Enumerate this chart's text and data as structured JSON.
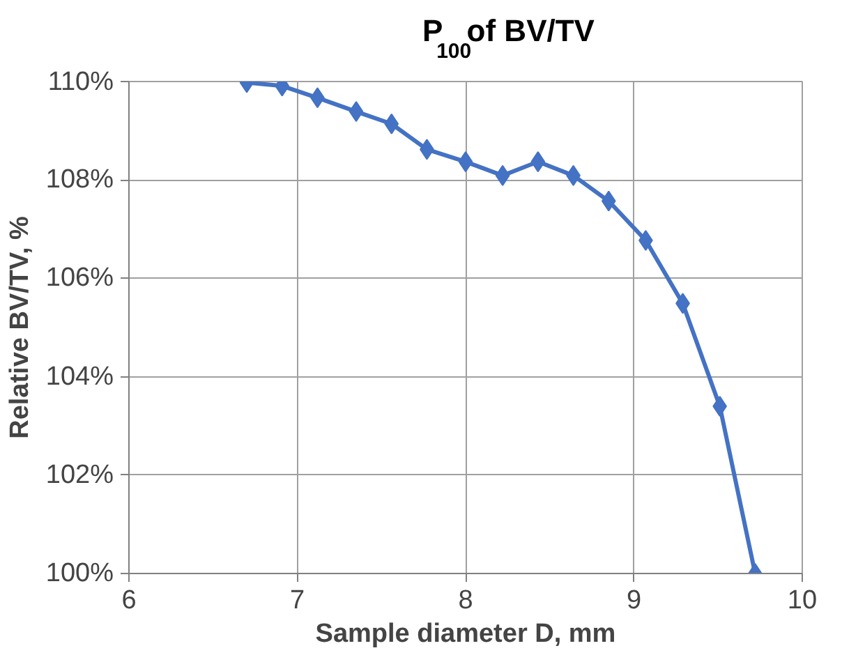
{
  "chart_data": {
    "type": "line",
    "title": "P$_{100}$ of BV/TV",
    "xlabel": "Sample diameter D, mm",
    "ylabel": "Relative BV/TV, %",
    "x": [
      6.7,
      6.91,
      7.12,
      7.35,
      7.56,
      7.77,
      8.0,
      8.22,
      8.43,
      8.64,
      8.85,
      9.07,
      9.29,
      9.51,
      9.72
    ],
    "series": [
      {
        "color": "#4472c4",
        "values": [
          109.98,
          109.91,
          109.67,
          109.39,
          109.14,
          108.62,
          108.37,
          108.09,
          108.37,
          108.09,
          107.57,
          106.77,
          105.49,
          103.4,
          100.0
        ]
      }
    ],
    "xlim": [
      6,
      10
    ],
    "xticks": [
      6,
      7,
      8,
      9,
      10
    ],
    "ylim": [
      100,
      110
    ],
    "yticks": [
      {
        "value": 100,
        "label": "100%"
      },
      {
        "value": 102,
        "label": "102%"
      },
      {
        "value": 104,
        "label": "104%"
      },
      {
        "value": 106,
        "label": "106%"
      },
      {
        "value": 108,
        "label": "108%"
      },
      {
        "value": 110,
        "label": "110%"
      }
    ],
    "grid": true,
    "marker": "diamond",
    "line_style": "solid"
  }
}
